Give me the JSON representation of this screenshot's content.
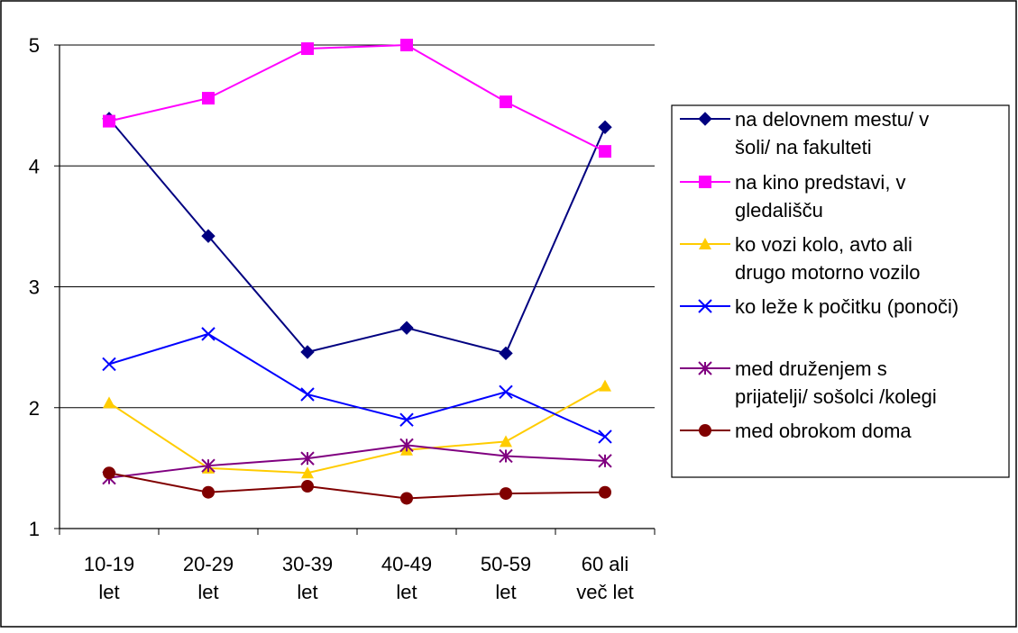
{
  "chart_data": {
    "type": "line",
    "categories": [
      [
        "10-19",
        "let"
      ],
      [
        "20-29",
        "let"
      ],
      [
        "30-39",
        "let"
      ],
      [
        "40-49",
        "let"
      ],
      [
        "50-59",
        "let"
      ],
      [
        "60 ali",
        "več let"
      ]
    ],
    "ylim": [
      1,
      5
    ],
    "yticks": [
      "1",
      "2",
      "3",
      "4",
      "5"
    ],
    "grid": true,
    "legend_position": "right",
    "series": [
      {
        "name": [
          "na delovnem mestu/ v",
          "šoli/ na fakulteti"
        ],
        "color": "#000080",
        "marker": "diamond",
        "values": [
          4.39,
          3.42,
          2.46,
          2.66,
          2.45,
          4.32
        ]
      },
      {
        "name": [
          "na kino predstavi, v",
          "gledališču"
        ],
        "color": "#ff00ff",
        "marker": "square",
        "values": [
          4.37,
          4.56,
          4.97,
          5.0,
          4.53,
          4.12
        ]
      },
      {
        "name": [
          "ko vozi kolo, avto ali",
          "drugo motorno vozilo"
        ],
        "color": "#ffcc00",
        "marker": "triangle",
        "values": [
          2.04,
          1.5,
          1.46,
          1.65,
          1.72,
          2.18
        ]
      },
      {
        "name": [
          "ko leže k počitku (ponoči)"
        ],
        "color": "#0000ff",
        "marker": "x",
        "values": [
          2.36,
          2.61,
          2.11,
          1.9,
          2.13,
          1.76
        ]
      },
      {
        "name": [
          "med druženjem s",
          "prijatelji/ sošolci /kolegi"
        ],
        "color": "#800080",
        "marker": "star",
        "values": [
          1.42,
          1.52,
          1.58,
          1.69,
          1.6,
          1.56
        ]
      },
      {
        "name": [
          "med obrokom doma"
        ],
        "color": "#800000",
        "marker": "circle",
        "values": [
          1.46,
          1.3,
          1.35,
          1.25,
          1.29,
          1.3
        ]
      }
    ]
  }
}
